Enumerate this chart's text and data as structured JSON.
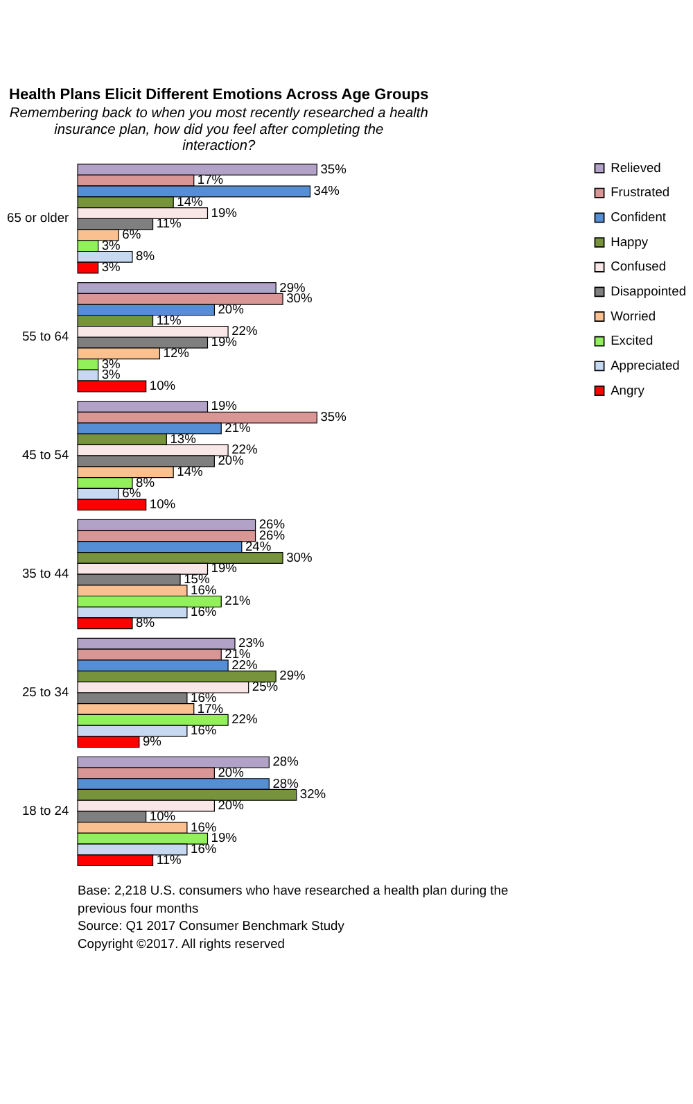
{
  "chart_data": {
    "type": "bar",
    "orientation": "horizontal",
    "title": "Health Plans Elicit Different Emotions Across Age Groups",
    "subtitle": "Remembering back to when you most recently researched a health insurance plan, how did you feel after completing the interaction?",
    "categories": [
      "65 or older",
      "55 to 64",
      "45 to 54",
      "35 to 44",
      "25 to 34",
      "18 to 24"
    ],
    "series": [
      {
        "name": "Relieved",
        "color": "#b3a2c7",
        "values": [
          35,
          29,
          19,
          26,
          23,
          28
        ],
        "value_labels": [
          "35%",
          "29%",
          "19%",
          "26%",
          "23%",
          "28%"
        ]
      },
      {
        "name": "Frustrated",
        "color": "#d99694",
        "values": [
          17,
          30,
          35,
          26,
          21,
          20
        ],
        "value_labels": [
          "17%",
          "30%",
          "35%",
          "26%",
          "21%",
          "20%"
        ]
      },
      {
        "name": "Confident",
        "color": "#558ed5",
        "values": [
          34,
          20,
          21,
          24,
          22,
          28
        ],
        "value_labels": [
          "34%",
          "20%",
          "21%",
          "24%",
          "22%",
          "28%"
        ]
      },
      {
        "name": "Happy",
        "color": "#77933c",
        "values": [
          14,
          11,
          13,
          30,
          29,
          32
        ],
        "value_labels": [
          "14%",
          "11%",
          "13%",
          "30%",
          "29%",
          "32%"
        ]
      },
      {
        "name": "Confused",
        "color": "#f9e6e6",
        "values": [
          19,
          22,
          22,
          19,
          25,
          20
        ],
        "value_labels": [
          "19%",
          "22%",
          "22%",
          "19%",
          "25%",
          "20%"
        ]
      },
      {
        "name": "Disappointed",
        "color": "#7f7f7f",
        "values": [
          11,
          19,
          20,
          15,
          16,
          10
        ],
        "value_labels": [
          "11%",
          "19%",
          "20%",
          "15%",
          "16%",
          "10%"
        ]
      },
      {
        "name": "Worried",
        "color": "#fac090",
        "values": [
          6,
          12,
          14,
          16,
          17,
          16
        ],
        "value_labels": [
          "6%",
          "12%",
          "14%",
          "16%",
          "17%",
          "16%"
        ]
      },
      {
        "name": "Excited",
        "color": "#92f05a",
        "values": [
          3,
          3,
          8,
          21,
          22,
          19
        ],
        "value_labels": [
          "3%",
          "3%",
          "8%",
          "21%",
          "22%",
          "19%"
        ]
      },
      {
        "name": "Appreciated",
        "color": "#c6d9f1",
        "values": [
          8,
          3,
          6,
          16,
          16,
          16
        ],
        "value_labels": [
          "8%",
          "3%",
          "6%",
          "16%",
          "16%",
          "16%"
        ]
      },
      {
        "name": "Angry",
        "color": "#ff0000",
        "values": [
          3,
          10,
          10,
          8,
          9,
          11
        ],
        "value_labels": [
          "3%",
          "10%",
          "10%",
          "8%",
          "9%",
          "11%"
        ]
      }
    ],
    "legend": "right",
    "annotations": [
      "Base: 2,218 U.S. consumers who have researched a health plan during the previous four months",
      "Source: Q1 2017 Consumer Benchmark Study",
      "Copyright ©2017. All rights reserved"
    ]
  }
}
